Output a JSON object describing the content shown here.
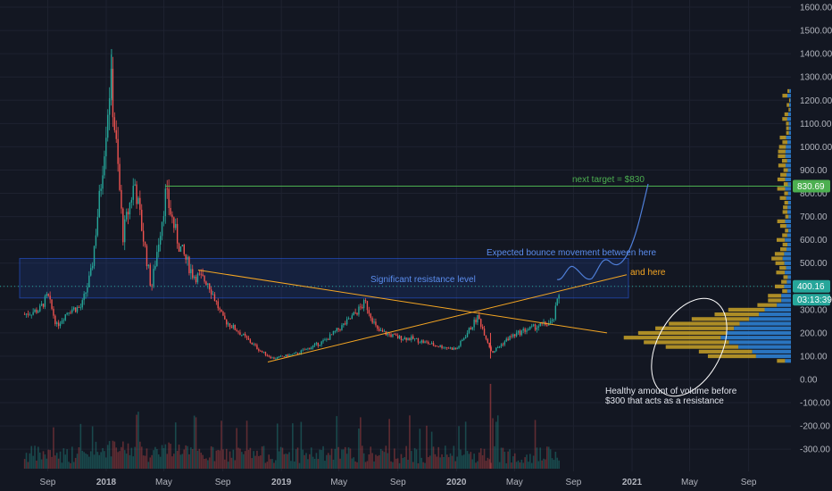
{
  "colors": {
    "background": "#131722",
    "grid": "#1e2230",
    "axis_text": "#b2b5be",
    "candle_up": "#26a69a",
    "candle_down": "#ef5350",
    "volume_up": "#26a69a",
    "volume_down": "#ef5350",
    "resistance_zone": "#2962ff",
    "trendline": "#f5a623",
    "target_line": "#4caf50",
    "projection": "#4f7fd9",
    "annotation_blue": "#5b8def",
    "annotation_orange": "#f5a623",
    "price_tag_target": "#4caf50",
    "price_tag_current": "#26a69a",
    "vp_up": "#2e7fd1",
    "vp_down": "#c9a227"
  },
  "annotations": {
    "next_target": "next target = $830",
    "bounce": "Expected bounce movement between here",
    "and_here": "and here",
    "resistance": "Significant resistance level",
    "volume_note_line1": "Healthy amount of volume before",
    "volume_note_line2": "$300 that acts as a resistance"
  },
  "price_tags": {
    "target": "830.69",
    "current_price": "400.16",
    "countdown": "03:13:39"
  },
  "chart_data": {
    "type": "candlestick",
    "y_axis": {
      "ticks": [
        1600,
        1500,
        1400,
        1300,
        1200,
        1100,
        1000,
        900,
        800,
        700,
        600,
        500,
        400,
        300,
        200,
        100,
        0,
        -100,
        -200,
        -300
      ],
      "tick_labels": [
        "1600.00",
        "1500.00",
        "1400.00",
        "1300.00",
        "1200.00",
        "1100.00",
        "1000.00",
        "900.00",
        "800.00",
        "700.00",
        "600.00",
        "500.00",
        "400.00",
        "300.00",
        "200.00",
        "100.00",
        "0.00",
        "-100.00",
        "-200.00",
        "-300.00"
      ],
      "ylim": [
        -360,
        1620
      ],
      "position": "right"
    },
    "x_axis": {
      "tick_labels": [
        "Sep",
        "2018",
        "May",
        "Sep",
        "2019",
        "May",
        "Sep",
        "2020",
        "May",
        "Sep",
        "2021",
        "May",
        "Sep"
      ],
      "tick_dates": [
        "2017-09",
        "2018-01",
        "2018-05",
        "2018-09",
        "2019-01",
        "2019-05",
        "2019-09",
        "2020-01",
        "2020-05",
        "2020-09",
        "2021-01",
        "2021-05",
        "2021-09"
      ],
      "bold_labels": [
        "2018",
        "2019",
        "2020",
        "2021"
      ]
    },
    "price_path": [
      {
        "date": "2017-07-15",
        "price": 280
      },
      {
        "date": "2017-08-15",
        "price": 300
      },
      {
        "date": "2017-09-01",
        "price": 360
      },
      {
        "date": "2017-09-20",
        "price": 230
      },
      {
        "date": "2017-10-15",
        "price": 300
      },
      {
        "date": "2017-11-10",
        "price": 310
      },
      {
        "date": "2017-12-01",
        "price": 460
      },
      {
        "date": "2017-12-20",
        "price": 820
      },
      {
        "date": "2018-01-10",
        "price": 1300
      },
      {
        "date": "2018-01-20",
        "price": 1050
      },
      {
        "date": "2018-02-05",
        "price": 620
      },
      {
        "date": "2018-03-01",
        "price": 850
      },
      {
        "date": "2018-04-05",
        "price": 390
      },
      {
        "date": "2018-05-05",
        "price": 800
      },
      {
        "date": "2018-06-01",
        "price": 580
      },
      {
        "date": "2018-07-01",
        "price": 450
      },
      {
        "date": "2018-08-01",
        "price": 420
      },
      {
        "date": "2018-09-01",
        "price": 260
      },
      {
        "date": "2018-10-01",
        "price": 210
      },
      {
        "date": "2018-11-20",
        "price": 120
      },
      {
        "date": "2018-12-15",
        "price": 90
      },
      {
        "date": "2019-02-01",
        "price": 110
      },
      {
        "date": "2019-04-01",
        "price": 165
      },
      {
        "date": "2019-05-20",
        "price": 250
      },
      {
        "date": "2019-06-25",
        "price": 330
      },
      {
        "date": "2019-07-20",
        "price": 210
      },
      {
        "date": "2019-09-01",
        "price": 180
      },
      {
        "date": "2019-10-01",
        "price": 175
      },
      {
        "date": "2019-11-20",
        "price": 145
      },
      {
        "date": "2020-01-01",
        "price": 130
      },
      {
        "date": "2020-02-15",
        "price": 270
      },
      {
        "date": "2020-03-15",
        "price": 115
      },
      {
        "date": "2020-04-20",
        "price": 180
      },
      {
        "date": "2020-05-20",
        "price": 210
      },
      {
        "date": "2020-06-20",
        "price": 230
      },
      {
        "date": "2020-07-20",
        "price": 245
      },
      {
        "date": "2020-08-05",
        "price": 400
      }
    ],
    "volume_profile_note": "volume concentrated between 100 and 300",
    "levels": {
      "target": 830.69,
      "current_price": 400.16,
      "resistance_zone": [
        350,
        520
      ]
    },
    "grid": true
  }
}
